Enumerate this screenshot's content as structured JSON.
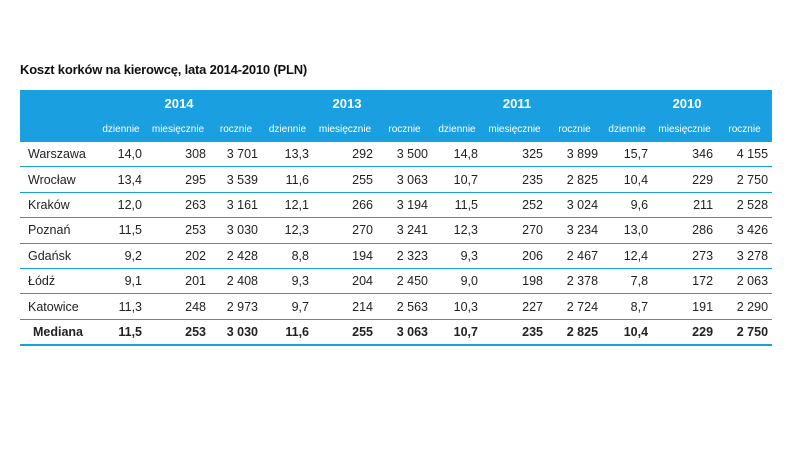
{
  "title": "Koszt korków na kierowcę, lata 2014-2010 (PLN)",
  "years": [
    "2014",
    "2013",
    "2011",
    "2010"
  ],
  "subheaders": [
    "dziennie",
    "miesięcznie",
    "rocznie"
  ],
  "rows": [
    {
      "city": "Warszawa",
      "values": [
        "14,0",
        "308",
        "3 701",
        "13,3",
        "292",
        "3 500",
        "14,8",
        "325",
        "3 899",
        "15,7",
        "346",
        "4 155"
      ]
    },
    {
      "city": "Wrocław",
      "values": [
        "13,4",
        "295",
        "3 539",
        "11,6",
        "255",
        "3 063",
        "10,7",
        "235",
        "2 825",
        "10,4",
        "229",
        "2 750"
      ]
    },
    {
      "city": "Kraków",
      "values": [
        "12,0",
        "263",
        "3 161",
        "12,1",
        "266",
        "3 194",
        "11,5",
        "252",
        "3 024",
        "9,6",
        "211",
        "2 528"
      ]
    },
    {
      "city": "Poznań",
      "values": [
        "11,5",
        "253",
        "3 030",
        "12,3",
        "270",
        "3 241",
        "12,3",
        "270",
        "3 234",
        "13,0",
        "286",
        "3 426"
      ]
    },
    {
      "city": "Gdańsk",
      "values": [
        "9,2",
        "202",
        "2 428",
        "8,8",
        "194",
        "2 323",
        "9,3",
        "206",
        "2 467",
        "12,4",
        "273",
        "3 278"
      ]
    },
    {
      "city": "Łódź",
      "values": [
        "9,1",
        "201",
        "2 408",
        "9,3",
        "204",
        "2 450",
        "9,0",
        "198",
        "2 378",
        "7,8",
        "172",
        "2 063"
      ]
    },
    {
      "city": "Katowice",
      "values": [
        "11,3",
        "248",
        "2 973",
        "9,7",
        "214",
        "2 563",
        "10,3",
        "227",
        "2 724",
        "8,7",
        "191",
        "2 290"
      ]
    },
    {
      "city": "Mediana",
      "values": [
        "11,5",
        "253",
        "3 030",
        "11,6",
        "255",
        "3 063",
        "10,7",
        "235",
        "2 825",
        "10,4",
        "229",
        "2 750"
      ]
    }
  ],
  "colors": {
    "header_bg": "#1aa0e0",
    "header_text": "#ffffff",
    "rule": "#1aa0e0"
  }
}
